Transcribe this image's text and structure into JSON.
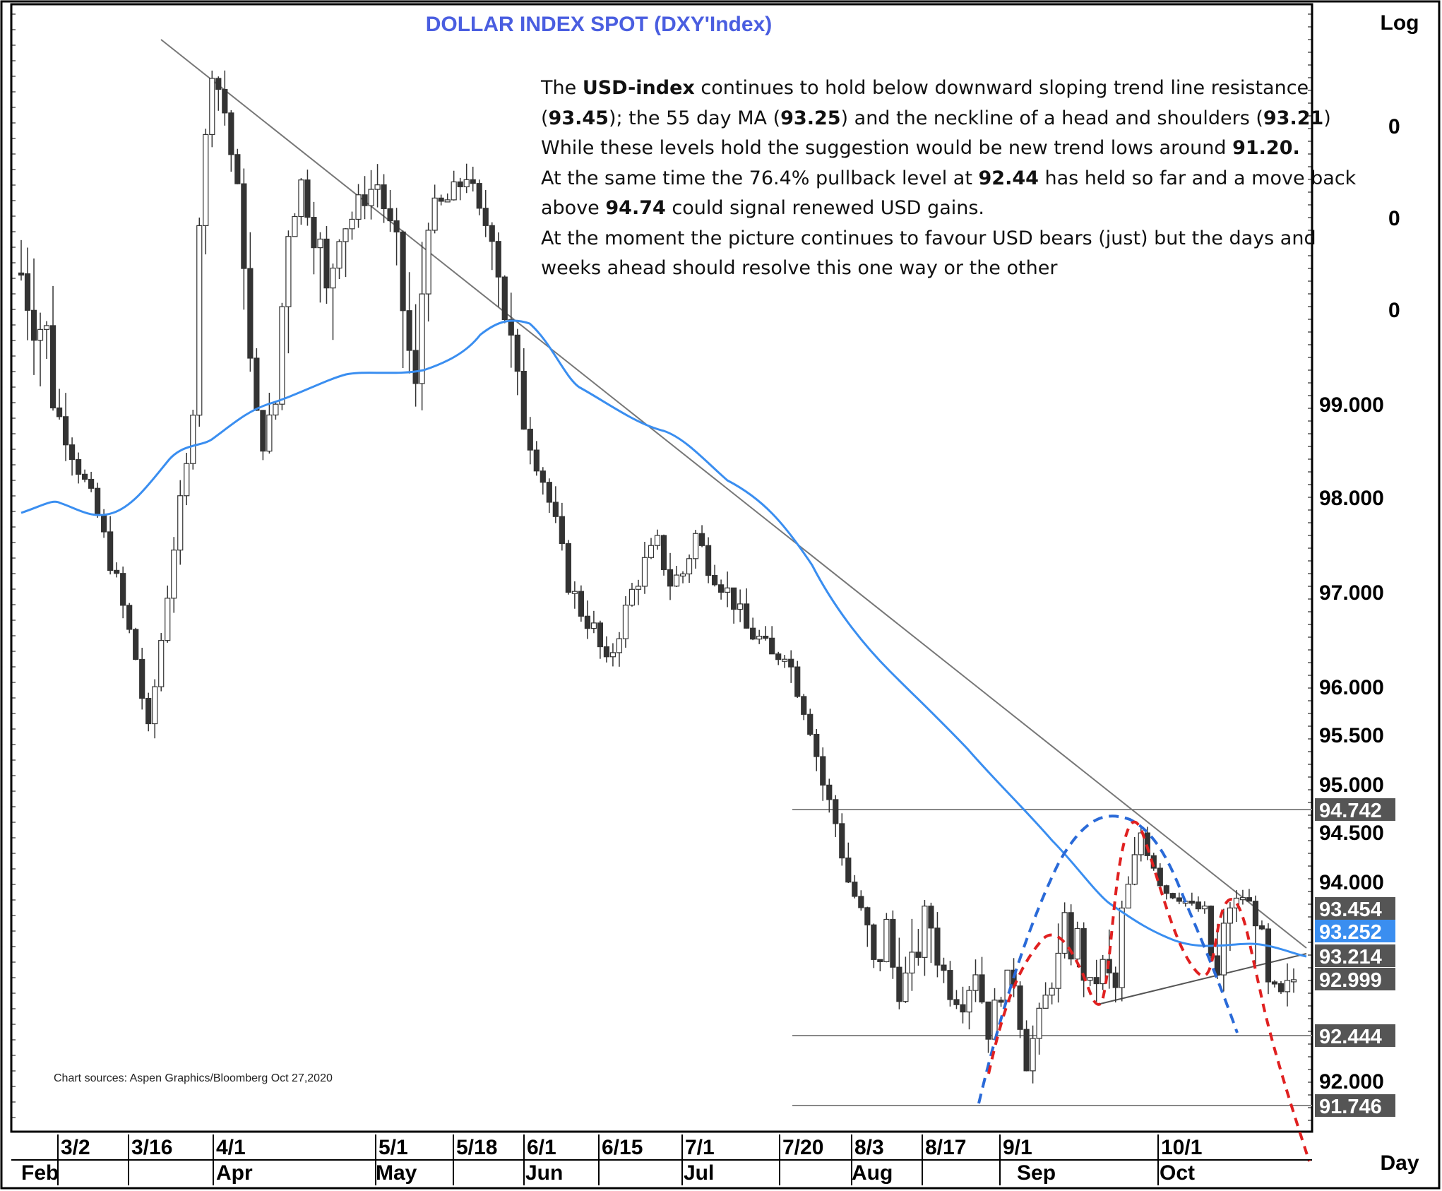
{
  "chart_data": {
    "type": "candlestick",
    "title": "DOLLAR  INDEX  SPOT  (DXY'Index)",
    "scale_label": "Log",
    "period_label": "Day",
    "log_scale": true,
    "ylim": [
      91.5,
      101.2
    ],
    "y_ticks": [
      "99.000",
      "98.000",
      "97.000",
      "96.000",
      "95.500",
      "95.000",
      "94.500",
      "94.000",
      "92.000"
    ],
    "y_ticks_partial": [
      "0",
      "0",
      "0"
    ],
    "price_tags": [
      {
        "label": "94.742",
        "value": 94.742,
        "color": "#555555"
      },
      {
        "label": "93.454",
        "value": 93.454,
        "color": "#555555"
      },
      {
        "label": "93.252",
        "value": 93.252,
        "color": "#3a8ef0"
      },
      {
        "label": "93.214",
        "value": 93.214,
        "color": "#555555"
      },
      {
        "label": "92.999",
        "value": 92.999,
        "color": "#555555"
      },
      {
        "label": "92.444",
        "value": 92.444,
        "color": "#555555"
      },
      {
        "label": "91.746",
        "value": 91.746,
        "color": "#555555"
      }
    ],
    "x_ticks_top": [
      "3/2",
      "3/16",
      "4/1",
      "5/1",
      "5/18",
      "6/1",
      "6/15",
      "7/1",
      "7/20",
      "8/3",
      "8/17",
      "9/1",
      "10/1"
    ],
    "x_ticks_months": [
      "Feb",
      "Apr",
      "May",
      "Jun",
      "Jul",
      "Aug",
      "Sep",
      "Oct"
    ],
    "series": [
      {
        "name": "DXY",
        "style": "ohlc candles",
        "close_path": [
          [
            0,
            99.4
          ],
          [
            4,
            99.2
          ],
          [
            8,
            98.5
          ],
          [
            12,
            97.8
          ],
          [
            15,
            97.1
          ],
          [
            18,
            96.3
          ],
          [
            20,
            95.5
          ],
          [
            22,
            96.5
          ],
          [
            24,
            97.5
          ],
          [
            26,
            98.3
          ],
          [
            28,
            99.7
          ],
          [
            30,
            101.0
          ],
          [
            32,
            100.6
          ],
          [
            34,
            99.9
          ],
          [
            36,
            99.1
          ],
          [
            38,
            98.6
          ],
          [
            40,
            99.0
          ],
          [
            42,
            99.6
          ],
          [
            44,
            100.0
          ],
          [
            46,
            99.6
          ],
          [
            48,
            99.3
          ],
          [
            50,
            99.6
          ],
          [
            52,
            99.7
          ],
          [
            54,
            99.9
          ],
          [
            56,
            100.0
          ],
          [
            58,
            99.6
          ],
          [
            60,
            99.3
          ],
          [
            62,
            99.0
          ],
          [
            64,
            99.7
          ],
          [
            66,
            99.8
          ],
          [
            68,
            99.9
          ],
          [
            70,
            100.1
          ],
          [
            72,
            99.7
          ],
          [
            74,
            99.6
          ],
          [
            76,
            99.3
          ],
          [
            78,
            99.0
          ],
          [
            80,
            98.6
          ],
          [
            82,
            98.2
          ],
          [
            84,
            97.7
          ],
          [
            86,
            97.1
          ],
          [
            88,
            96.8
          ],
          [
            90,
            96.6
          ],
          [
            92,
            96.2
          ],
          [
            94,
            96.6
          ],
          [
            96,
            97.0
          ],
          [
            98,
            97.3
          ],
          [
            100,
            97.5
          ],
          [
            102,
            97.1
          ],
          [
            104,
            97.2
          ],
          [
            106,
            97.6
          ],
          [
            108,
            97.3
          ],
          [
            110,
            97.1
          ],
          [
            112,
            96.9
          ],
          [
            114,
            96.6
          ],
          [
            116,
            96.5
          ],
          [
            118,
            96.3
          ],
          [
            120,
            96.4
          ],
          [
            122,
            96.0
          ],
          [
            124,
            95.6
          ],
          [
            126,
            95.0
          ],
          [
            128,
            94.6
          ],
          [
            130,
            94.0
          ],
          [
            132,
            93.4
          ],
          [
            134,
            93.1
          ],
          [
            136,
            93.3
          ],
          [
            138,
            92.9
          ],
          [
            140,
            93.1
          ],
          [
            142,
            93.4
          ],
          [
            144,
            93.2
          ],
          [
            146,
            92.9
          ],
          [
            148,
            92.8
          ],
          [
            150,
            93.1
          ],
          [
            152,
            92.5
          ],
          [
            154,
            92.9
          ],
          [
            156,
            93.0
          ],
          [
            158,
            92.2
          ],
          [
            160,
            92.6
          ],
          [
            162,
            93.0
          ],
          [
            164,
            93.3
          ],
          [
            166,
            93.2
          ],
          [
            168,
            92.9
          ],
          [
            170,
            93.1
          ],
          [
            172,
            92.9
          ],
          [
            174,
            93.9
          ],
          [
            176,
            94.5
          ],
          [
            178,
            94.2
          ],
          [
            180,
            93.8
          ],
          [
            182,
            93.7
          ],
          [
            184,
            93.5
          ],
          [
            186,
            93.4
          ],
          [
            188,
            93.0
          ],
          [
            190,
            93.5
          ],
          [
            192,
            93.7
          ],
          [
            194,
            93.4
          ],
          [
            196,
            92.9
          ],
          [
            198,
            92.8
          ],
          [
            200,
            93.0
          ]
        ]
      },
      {
        "name": "55 day MA",
        "style": "line",
        "color": "#3a8ef0",
        "points": [
          [
            0,
            97.8
          ],
          [
            6,
            97.9
          ],
          [
            14,
            97.8
          ],
          [
            20,
            98.1
          ],
          [
            26,
            98.5
          ],
          [
            32,
            98.9
          ],
          [
            38,
            99.2
          ],
          [
            44,
            99.3
          ],
          [
            50,
            99.3
          ],
          [
            56,
            99.5
          ],
          [
            60,
            99.7
          ],
          [
            66,
            99.6
          ],
          [
            72,
            99.0
          ],
          [
            78,
            98.7
          ],
          [
            84,
            98.3
          ],
          [
            90,
            97.7
          ],
          [
            96,
            96.9
          ],
          [
            100,
            96.1
          ],
          [
            104,
            95.5
          ],
          [
            110,
            94.9
          ],
          [
            116,
            94.4
          ],
          [
            122,
            94.0
          ],
          [
            128,
            93.7
          ],
          [
            132,
            93.55
          ],
          [
            136,
            93.35
          ],
          [
            140,
            93.3
          ],
          [
            144,
            93.25
          ],
          [
            148,
            93.252
          ]
        ]
      },
      {
        "name": "trend line resistance",
        "style": "line",
        "color": "#666666",
        "points": [
          [
            22,
            101.2
          ],
          [
            200,
            93.454
          ]
        ]
      }
    ],
    "annotations": {
      "levels": [
        94.742,
        92.444,
        91.746
      ],
      "neckline": [
        93.214,
        93.0
      ],
      "patterns": [
        "head and shoulders (red dashed)",
        "rounded top (blue dashed)"
      ]
    }
  },
  "commentary": {
    "line1_pre": "The ",
    "line1_bold": "USD-index",
    "line1_post": " continues to hold below  downward sloping trend line resistance",
    "line2_a": "(",
    "line2_b1": "93.45",
    "line2_c": "); the 55 day MA (",
    "line2_b2": "93.25",
    "line2_d": ") and the neckline of a head and shoulders (",
    "line2_b3": "93.21",
    "line2_e": ")",
    "line3_pre": "While these levels hold the suggestion would be new trend lows around ",
    "line3_bold": "91.20.",
    "line4_pre": "At the same time the 76.4% pullback level at ",
    "line4_bold": "92.44",
    "line4_post": " has held so far  and a move back",
    "line5_pre": "above ",
    "line5_bold": "94.74",
    "line5_post": " could signal renewed USD gains.",
    "line6": "At the moment the picture continues to favour USD bears (just) but the days and",
    "line7": "weeks ahead should resolve this one way or the other"
  },
  "source_note": "Chart sources: Aspen  Graphics/Bloomberg Oct 27,2020"
}
